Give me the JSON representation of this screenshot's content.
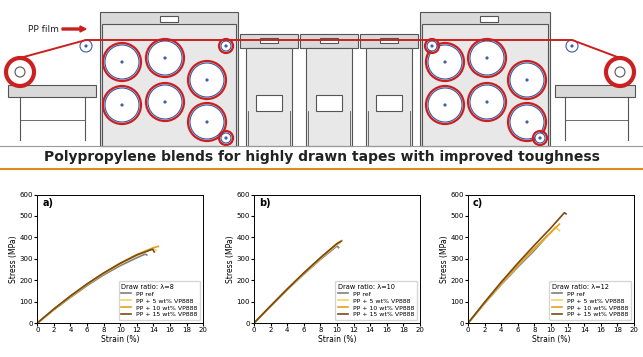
{
  "diagram": {
    "film_label": "PP film"
  },
  "banner": "Polypropylene blends for highly drawn tapes with improved toughness",
  "chart_data": [
    {
      "type": "line",
      "panel": "a)",
      "legend_title": "Draw ratio: λ=8",
      "x_label": "Strain (%)",
      "y_label": "Stress (MPa)",
      "xlim": [
        0,
        20
      ],
      "xticks": [
        0,
        2,
        4,
        6,
        8,
        10,
        12,
        14,
        16,
        18,
        20
      ],
      "ylim": [
        0,
        600
      ],
      "yticks": [
        0,
        100,
        200,
        300,
        400,
        500,
        600
      ],
      "legend": "lower right",
      "series": [
        {
          "name": "PP ref",
          "color": "#7f7f7f",
          "x": [
            0,
            2,
            4,
            6,
            8,
            10,
            12,
            13,
            13.2
          ],
          "values": [
            0,
            62,
            120,
            175,
            225,
            268,
            305,
            322,
            318
          ]
        },
        {
          "name": "PP + 5 wt% VP888",
          "color": "#f2d45c",
          "x": [
            0,
            2,
            4,
            6,
            8,
            10,
            12,
            14,
            14.3
          ],
          "values": [
            0,
            64,
            124,
            180,
            231,
            276,
            316,
            348,
            340
          ]
        },
        {
          "name": "PP + 10 wt% VP888",
          "color": "#e0a020",
          "x": [
            0,
            2,
            4,
            6,
            8,
            10,
            12,
            14,
            14.6
          ],
          "values": [
            0,
            65,
            125,
            182,
            233,
            280,
            320,
            352,
            358
          ]
        },
        {
          "name": "PP + 15 wt% VP888",
          "color": "#7b4a12",
          "x": [
            0,
            2,
            4,
            6,
            8,
            10,
            12,
            13.9,
            14.1
          ],
          "values": [
            0,
            66,
            127,
            183,
            234,
            279,
            318,
            345,
            332
          ]
        }
      ]
    },
    {
      "type": "line",
      "panel": "b)",
      "legend_title": "Draw ratio: λ=10",
      "x_label": "Strain (%)",
      "y_label": "Stress (MPa)",
      "xlim": [
        0,
        20
      ],
      "xticks": [
        0,
        2,
        4,
        6,
        8,
        10,
        12,
        14,
        16,
        18,
        20
      ],
      "ylim": [
        0,
        600
      ],
      "yticks": [
        0,
        100,
        200,
        300,
        400,
        500,
        600
      ],
      "legend": "lower right",
      "series": [
        {
          "name": "PP ref",
          "color": "#7f7f7f",
          "x": [
            0,
            2,
            4,
            6,
            8,
            10,
            10.2
          ],
          "values": [
            0,
            78,
            155,
            228,
            297,
            360,
            352
          ]
        },
        {
          "name": "PP + 5 wt% VP888",
          "color": "#f2d45c",
          "x": [
            0,
            2,
            4,
            6,
            8,
            10,
            10.4
          ],
          "values": [
            0,
            79,
            157,
            231,
            301,
            366,
            375
          ]
        },
        {
          "name": "PP + 10 wt% VP888",
          "color": "#e0a020",
          "x": [
            0,
            2,
            4,
            6,
            8,
            10,
            10.6
          ],
          "values": [
            0,
            80,
            158,
            233,
            304,
            370,
            385
          ]
        },
        {
          "name": "PP + 15 wt% VP888",
          "color": "#7b4a12",
          "x": [
            0,
            2,
            4,
            6,
            8,
            10,
            10.5
          ],
          "values": [
            0,
            80,
            159,
            234,
            305,
            371,
            382
          ]
        }
      ]
    },
    {
      "type": "line",
      "panel": "c)",
      "legend_title": "Draw ratio: λ=12",
      "x_label": "Strain (%)",
      "y_label": "Stress (MPa)",
      "xlim": [
        0,
        20
      ],
      "xticks": [
        0,
        2,
        4,
        6,
        8,
        10,
        12,
        14,
        16,
        18,
        20
      ],
      "ylim": [
        0,
        600
      ],
      "yticks": [
        0,
        100,
        200,
        300,
        400,
        500,
        600
      ],
      "legend": "lower right",
      "series": [
        {
          "name": "PP ref",
          "color": "#7f7f7f",
          "x": [
            0,
            2,
            4,
            6,
            8,
            9.5
          ],
          "values": [
            0,
            92,
            180,
            262,
            340,
            405
          ]
        },
        {
          "name": "PP + 5 wt% VP888",
          "color": "#f2d45c",
          "x": [
            0,
            2,
            4,
            6,
            8,
            10,
            10.5,
            11
          ],
          "values": [
            0,
            94,
            184,
            268,
            348,
            422,
            448,
            432
          ]
        },
        {
          "name": "PP + 10 wt% VP888",
          "color": "#e0a020",
          "x": [
            0,
            2,
            4,
            6,
            8,
            10,
            11
          ],
          "values": [
            0,
            95,
            185,
            270,
            350,
            425,
            462
          ]
        },
        {
          "name": "PP + 15 wt% VP888",
          "color": "#7b4a12",
          "x": [
            0,
            2,
            4,
            6,
            8,
            10,
            11.6,
            11.8
          ],
          "values": [
            0,
            98,
            192,
            280,
            364,
            445,
            515,
            510
          ]
        }
      ]
    }
  ]
}
